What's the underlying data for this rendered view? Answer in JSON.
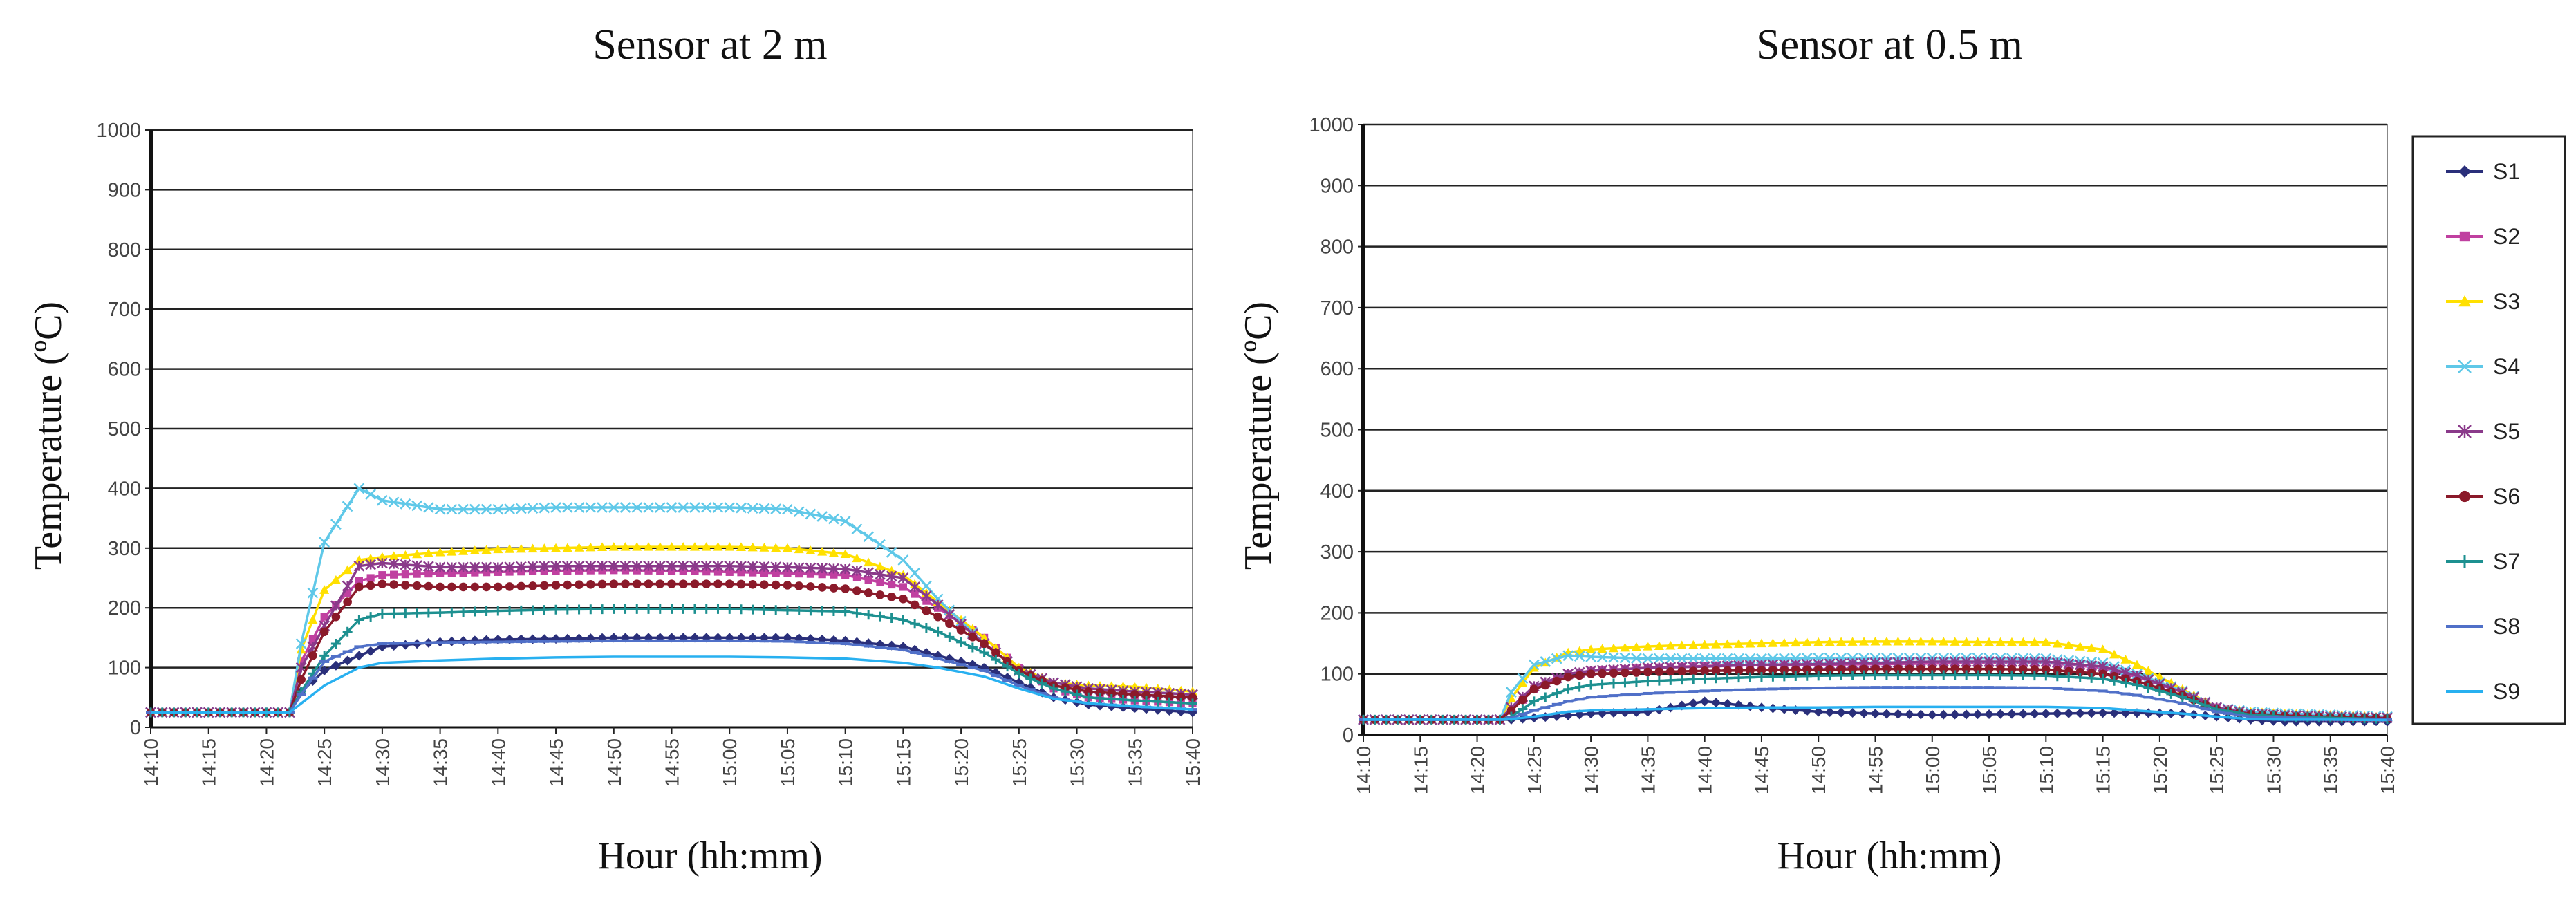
{
  "chart_data": [
    {
      "type": "line",
      "title": "Sensor at 2 m",
      "xlabel": "Hour (hh:mm)",
      "ylabel": "Temperature (ºC)",
      "ylim": [
        0,
        1000
      ],
      "yticks": [
        "0",
        "100",
        "200",
        "300",
        "400",
        "500",
        "600",
        "700",
        "800",
        "900",
        "1000"
      ],
      "xticks": [
        "14:10",
        "14:15",
        "14:20",
        "14:25",
        "14:30",
        "14:35",
        "14:40",
        "14:45",
        "14:50",
        "14:55",
        "15:00",
        "15:05",
        "15:10",
        "15:15",
        "15:20",
        "15:25",
        "15:30",
        "15:35",
        "15:40"
      ],
      "grid": true,
      "x_minutes": [
        0,
        11,
        12,
        13,
        15,
        18,
        20,
        25,
        30,
        35,
        40,
        45,
        50,
        55,
        60,
        65,
        68,
        72,
        75,
        78,
        81,
        85,
        90
      ],
      "series": [
        {
          "name": "S1",
          "values": [
            25,
            25,
            25,
            60,
            95,
            120,
            135,
            143,
            147,
            148,
            150,
            150,
            150,
            150,
            145,
            135,
            120,
            100,
            75,
            50,
            38,
            32,
            25
          ]
        },
        {
          "name": "S2",
          "values": [
            25,
            25,
            25,
            110,
            185,
            245,
            255,
            258,
            260,
            262,
            263,
            262,
            260,
            258,
            255,
            235,
            200,
            150,
            100,
            65,
            50,
            45,
            40
          ]
        },
        {
          "name": "S3",
          "values": [
            25,
            25,
            25,
            130,
            230,
            280,
            285,
            293,
            298,
            300,
            302,
            302,
            302,
            300,
            290,
            255,
            210,
            150,
            100,
            75,
            70,
            68,
            60
          ]
        },
        {
          "name": "S4",
          "values": [
            25,
            25,
            25,
            140,
            310,
            400,
            380,
            365,
            365,
            368,
            368,
            368,
            368,
            365,
            345,
            280,
            215,
            140,
            95,
            75,
            65,
            60,
            55
          ]
        },
        {
          "name": "S5",
          "values": [
            25,
            25,
            25,
            100,
            170,
            270,
            275,
            268,
            268,
            270,
            270,
            270,
            270,
            268,
            265,
            250,
            205,
            140,
            95,
            75,
            65,
            60,
            55
          ]
        },
        {
          "name": "S6",
          "values": [
            25,
            25,
            25,
            80,
            160,
            235,
            240,
            235,
            235,
            238,
            240,
            240,
            240,
            238,
            232,
            215,
            185,
            140,
            95,
            70,
            60,
            55,
            50
          ]
        },
        {
          "name": "S7",
          "values": [
            25,
            25,
            25,
            60,
            120,
            180,
            190,
            192,
            195,
            197,
            198,
            198,
            198,
            196,
            194,
            180,
            160,
            125,
            90,
            65,
            50,
            45,
            40
          ]
        },
        {
          "name": "S8",
          "values": [
            25,
            25,
            25,
            55,
            110,
            135,
            140,
            142,
            143,
            144,
            145,
            145,
            145,
            144,
            140,
            130,
            115,
            95,
            70,
            50,
            40,
            35,
            30
          ]
        },
        {
          "name": "S9",
          "values": [
            25,
            25,
            25,
            40,
            70,
            100,
            108,
            112,
            115,
            117,
            118,
            118,
            118,
            117,
            115,
            108,
            100,
            85,
            65,
            48,
            40,
            35,
            30
          ]
        }
      ]
    },
    {
      "type": "line",
      "title": "Sensor at 0.5 m",
      "xlabel": "Hour (hh:mm)",
      "ylabel": "Temperature (ºC)",
      "ylim": [
        0,
        1000
      ],
      "yticks": [
        "0",
        "100",
        "200",
        "300",
        "400",
        "500",
        "600",
        "700",
        "800",
        "900",
        "1000"
      ],
      "xticks": [
        "14:10",
        "14:15",
        "14:20",
        "14:25",
        "14:30",
        "14:35",
        "14:40",
        "14:45",
        "14:50",
        "14:55",
        "15:00",
        "15:05",
        "15:10",
        "15:15",
        "15:20",
        "15:25",
        "15:30",
        "15:35",
        "15:40"
      ],
      "grid": true,
      "x_minutes": [
        0,
        11,
        12,
        13,
        15,
        18,
        20,
        25,
        30,
        35,
        40,
        45,
        50,
        55,
        60,
        65,
        68,
        72,
        75,
        78,
        81,
        85,
        90
      ],
      "series": [
        {
          "name": "S1",
          "values": [
            25,
            25,
            25,
            25,
            28,
            32,
            35,
            38,
            55,
            45,
            38,
            35,
            33,
            34,
            35,
            36,
            36,
            35,
            30,
            25,
            22,
            22,
            22
          ]
        },
        {
          "name": "S2",
          "values": [
            25,
            25,
            25,
            40,
            75,
            100,
            105,
            110,
            113,
            115,
            115,
            116,
            117,
            118,
            118,
            110,
            95,
            70,
            45,
            35,
            32,
            30,
            28
          ]
        },
        {
          "name": "S3",
          "values": [
            25,
            25,
            25,
            60,
            110,
            135,
            140,
            145,
            148,
            150,
            152,
            153,
            153,
            152,
            152,
            140,
            115,
            75,
            45,
            38,
            35,
            33,
            30
          ]
        },
        {
          "name": "S4",
          "values": [
            25,
            25,
            25,
            70,
            115,
            130,
            128,
            125,
            125,
            125,
            126,
            126,
            126,
            126,
            125,
            118,
            100,
            72,
            45,
            38,
            35,
            33,
            30
          ]
        },
        {
          "name": "S5",
          "values": [
            25,
            25,
            25,
            45,
            80,
            100,
            105,
            110,
            112,
            115,
            116,
            118,
            120,
            120,
            120,
            112,
            97,
            70,
            45,
            35,
            32,
            30,
            28
          ]
        },
        {
          "name": "S6",
          "values": [
            25,
            25,
            25,
            40,
            75,
            95,
            100,
            103,
            105,
            106,
            107,
            108,
            108,
            108,
            107,
            100,
            88,
            65,
            42,
            34,
            31,
            29,
            27
          ]
        },
        {
          "name": "S7",
          "values": [
            25,
            25,
            25,
            30,
            55,
            75,
            82,
            88,
            92,
            95,
            97,
            98,
            98,
            98,
            97,
            92,
            82,
            62,
            42,
            33,
            30,
            28,
            26
          ]
        },
        {
          "name": "S8",
          "values": [
            25,
            25,
            25,
            28,
            40,
            55,
            62,
            68,
            72,
            75,
            77,
            78,
            78,
            78,
            77,
            72,
            65,
            52,
            38,
            30,
            28,
            26,
            25
          ]
        },
        {
          "name": "S9",
          "values": [
            25,
            25,
            25,
            26,
            30,
            38,
            40,
            42,
            44,
            45,
            45,
            46,
            46,
            46,
            46,
            44,
            40,
            35,
            30,
            26,
            25,
            25,
            24
          ]
        }
      ]
    }
  ],
  "legend": {
    "items": [
      {
        "name": "S1",
        "color": "#2a2f7a",
        "marker": "diamond"
      },
      {
        "name": "S2",
        "color": "#c040a0",
        "marker": "square"
      },
      {
        "name": "S3",
        "color": "#ffe000",
        "marker": "triangle"
      },
      {
        "name": "S4",
        "color": "#5fc8e8",
        "marker": "x"
      },
      {
        "name": "S5",
        "color": "#8a3a8a",
        "marker": "star"
      },
      {
        "name": "S6",
        "color": "#8b1a2a",
        "marker": "circle"
      },
      {
        "name": "S7",
        "color": "#1d9090",
        "marker": "plus"
      },
      {
        "name": "S8",
        "color": "#5070c8",
        "marker": "dash"
      },
      {
        "name": "S9",
        "color": "#28b0f0",
        "marker": "line"
      }
    ]
  }
}
